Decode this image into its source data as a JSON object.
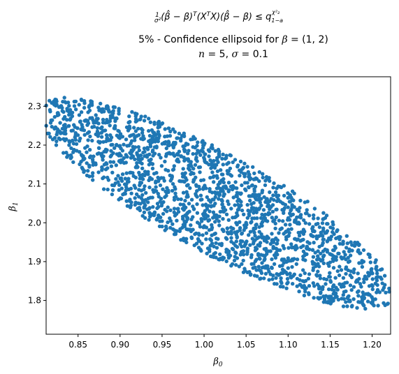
{
  "chart_data": {
    "type": "scatter",
    "title_lines": [
      "⁡¹⁄σ²(β̂ − β)ᵀ(XᵀX)(β̂ − β) ≤ q₁₋ₐ^χ²",
      "5% - Confidence ellipsoid for β = (1, 2)",
      "n = 5, σ = 0.1"
    ],
    "xlabel": "β₀",
    "ylabel": "β₁",
    "xlim": [
      0.812,
      1.222
    ],
    "ylim": [
      1.713,
      2.376
    ],
    "xticks": [
      "0.85",
      "0.90",
      "0.95",
      "1.00",
      "1.05",
      "1.10",
      "1.15",
      "1.20"
    ],
    "yticks": [
      "1.8",
      "1.9",
      "2.0",
      "2.1",
      "2.2",
      "2.3"
    ],
    "grid": false,
    "point_color": "#1f77b4",
    "series": [
      {
        "points_description_center": [
          1.0,
          2.05
        ],
        "n_points": 2000
      }
    ]
  }
}
